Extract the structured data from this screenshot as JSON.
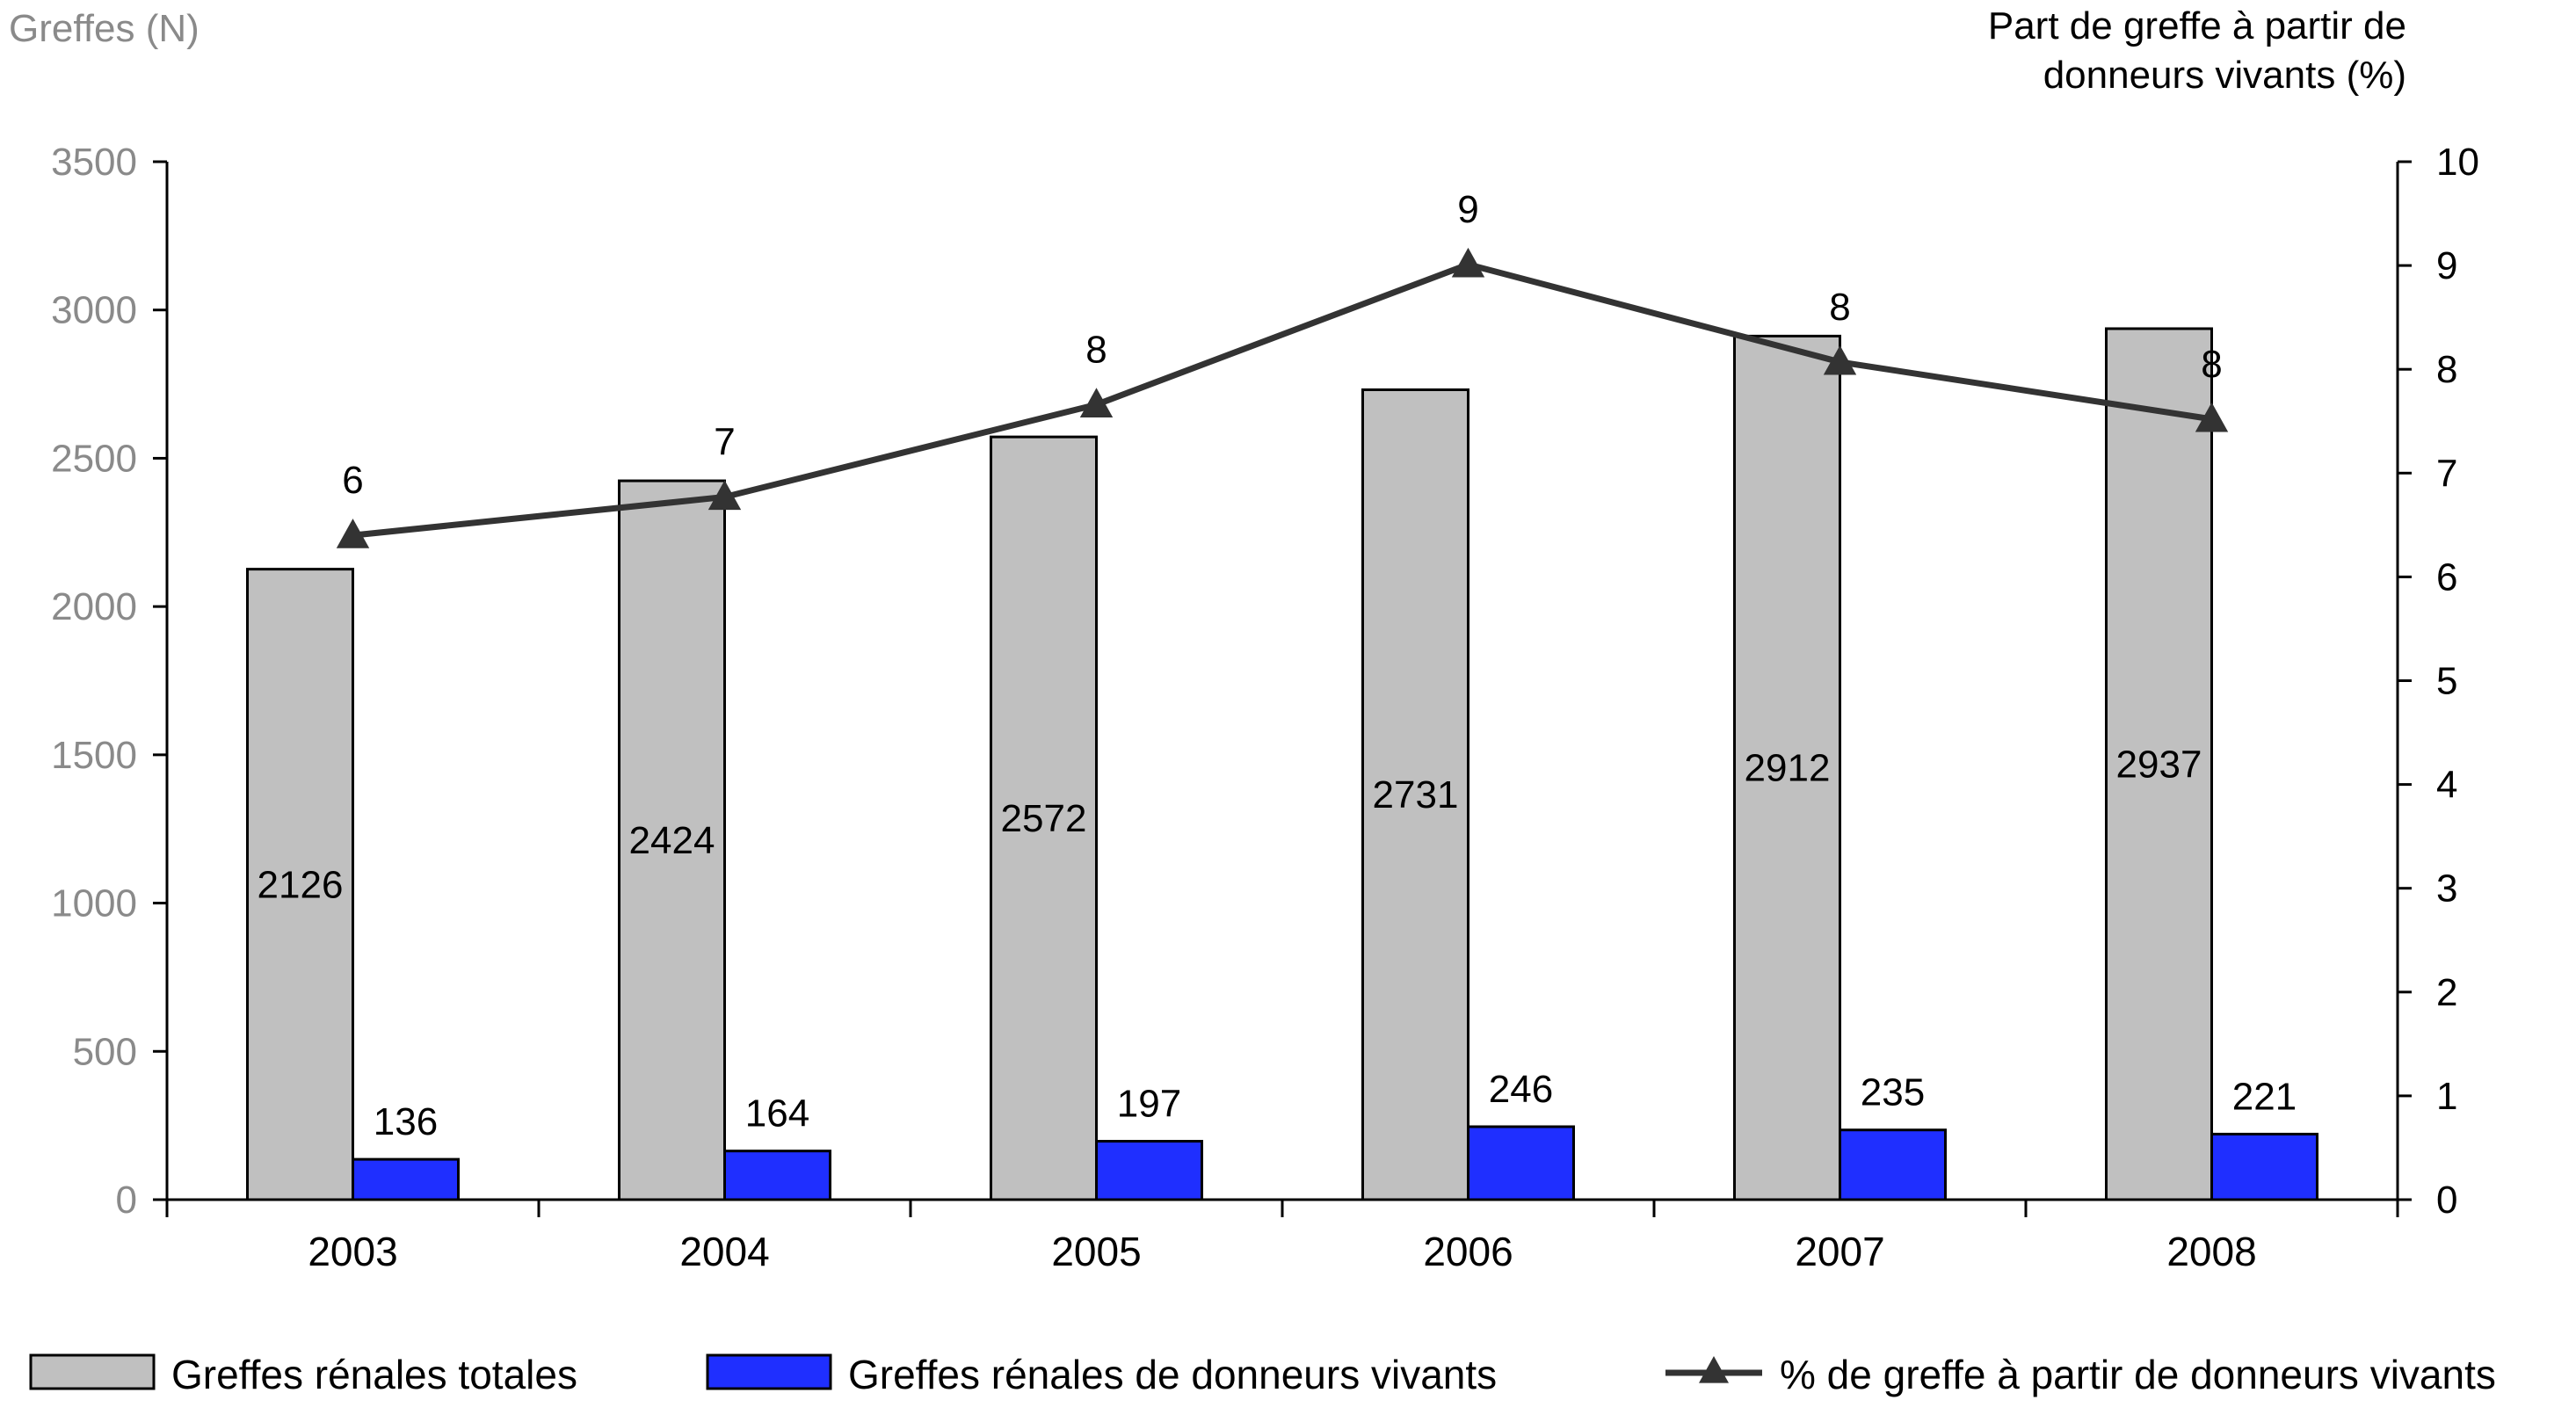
{
  "chart_data": {
    "type": "bar",
    "categories": [
      "2003",
      "2004",
      "2005",
      "2006",
      "2007",
      "2008"
    ],
    "y_left": {
      "label": "Greffes (N)",
      "range": [
        0,
        3500
      ],
      "ticks": [
        "0",
        "500",
        "1000",
        "1500",
        "2000",
        "2500",
        "3000",
        "3500"
      ]
    },
    "y_right": {
      "label_lines": [
        "Part de greffe à partir de",
        "donneurs vivants (%)"
      ],
      "range": [
        0,
        10
      ],
      "ticks": [
        "0",
        "1",
        "2",
        "3",
        "4",
        "5",
        "6",
        "7",
        "8",
        "9",
        "10"
      ]
    },
    "series": [
      {
        "name": "Greffes rénales totales",
        "type": "bar",
        "axis": "left",
        "color": "#c0c0c0",
        "values": [
          2126,
          2424,
          2572,
          2731,
          2912,
          2937
        ],
        "labels": [
          "2126",
          "2424",
          "2572",
          "2731",
          "2912",
          "2937"
        ]
      },
      {
        "name": "Greffes rénales de donneurs vivants",
        "type": "bar",
        "axis": "left",
        "color": "#1f2fff",
        "values": [
          136,
          164,
          197,
          246,
          235,
          221
        ],
        "labels": [
          "136",
          "164",
          "197",
          "246",
          "235",
          "221"
        ]
      },
      {
        "name": "% de greffe à partir de donneurs vivants",
        "type": "line",
        "axis": "right",
        "color": "#333333",
        "marker": "triangle",
        "values": [
          6.4,
          6.77,
          7.66,
          9.01,
          8.07,
          7.52
        ],
        "labels": [
          "6",
          "7",
          "8",
          "9",
          "8",
          "8"
        ]
      }
    ],
    "grid": false,
    "legend": "bottom"
  }
}
